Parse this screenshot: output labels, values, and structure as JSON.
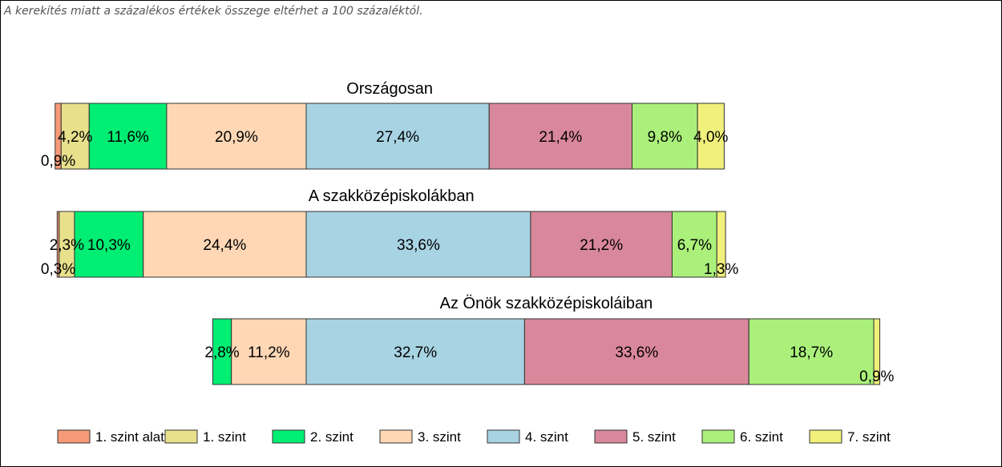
{
  "note": "A kerekítés miatt a  százalékos értékek összege eltérhet a 100 százaléktól.",
  "chart_data": {
    "type": "stacked-bar-100",
    "orientation": "horizontal",
    "levels": [
      "1. szint alatti",
      "1. szint",
      "2. szint",
      "3. szint",
      "4. szint",
      "5. szint",
      "6. szint",
      "7. szint"
    ],
    "colors": [
      "#f79a77",
      "#e8e08b",
      "#00ee73",
      "#ffd7b5",
      "#a8d3e3",
      "#d9879a",
      "#aaf07a",
      "#f0f07a"
    ],
    "bars": [
      {
        "title": "Országosan",
        "values": [
          0.9,
          4.2,
          11.6,
          20.9,
          27.4,
          21.4,
          9.8,
          4.0
        ],
        "labels": [
          "0,9%",
          "4,2%",
          "11,6%",
          "20,9%",
          "27,4%",
          "21,4%",
          "9,8%",
          "4,0%"
        ]
      },
      {
        "title": "A szakközépiskolákban",
        "values": [
          0.3,
          2.3,
          10.3,
          24.4,
          33.6,
          21.2,
          6.7,
          1.3
        ],
        "labels": [
          "0,3%",
          "2,3%",
          "10,3%",
          "24,4%",
          "33,6%",
          "21,2%",
          "6,7%",
          "1,3%"
        ]
      },
      {
        "title": "Az Önök szakközépiskoláiban",
        "values": [
          0.0,
          0.0,
          2.8,
          11.2,
          32.7,
          33.6,
          18.7,
          0.9
        ],
        "labels": [
          "",
          "",
          "2,8%",
          "11,2%",
          "32,7%",
          "33,6%",
          "18,7%",
          "0,9%"
        ]
      }
    ],
    "legend_position": "bottom",
    "alignment": "4. szint starts at common baseline"
  }
}
